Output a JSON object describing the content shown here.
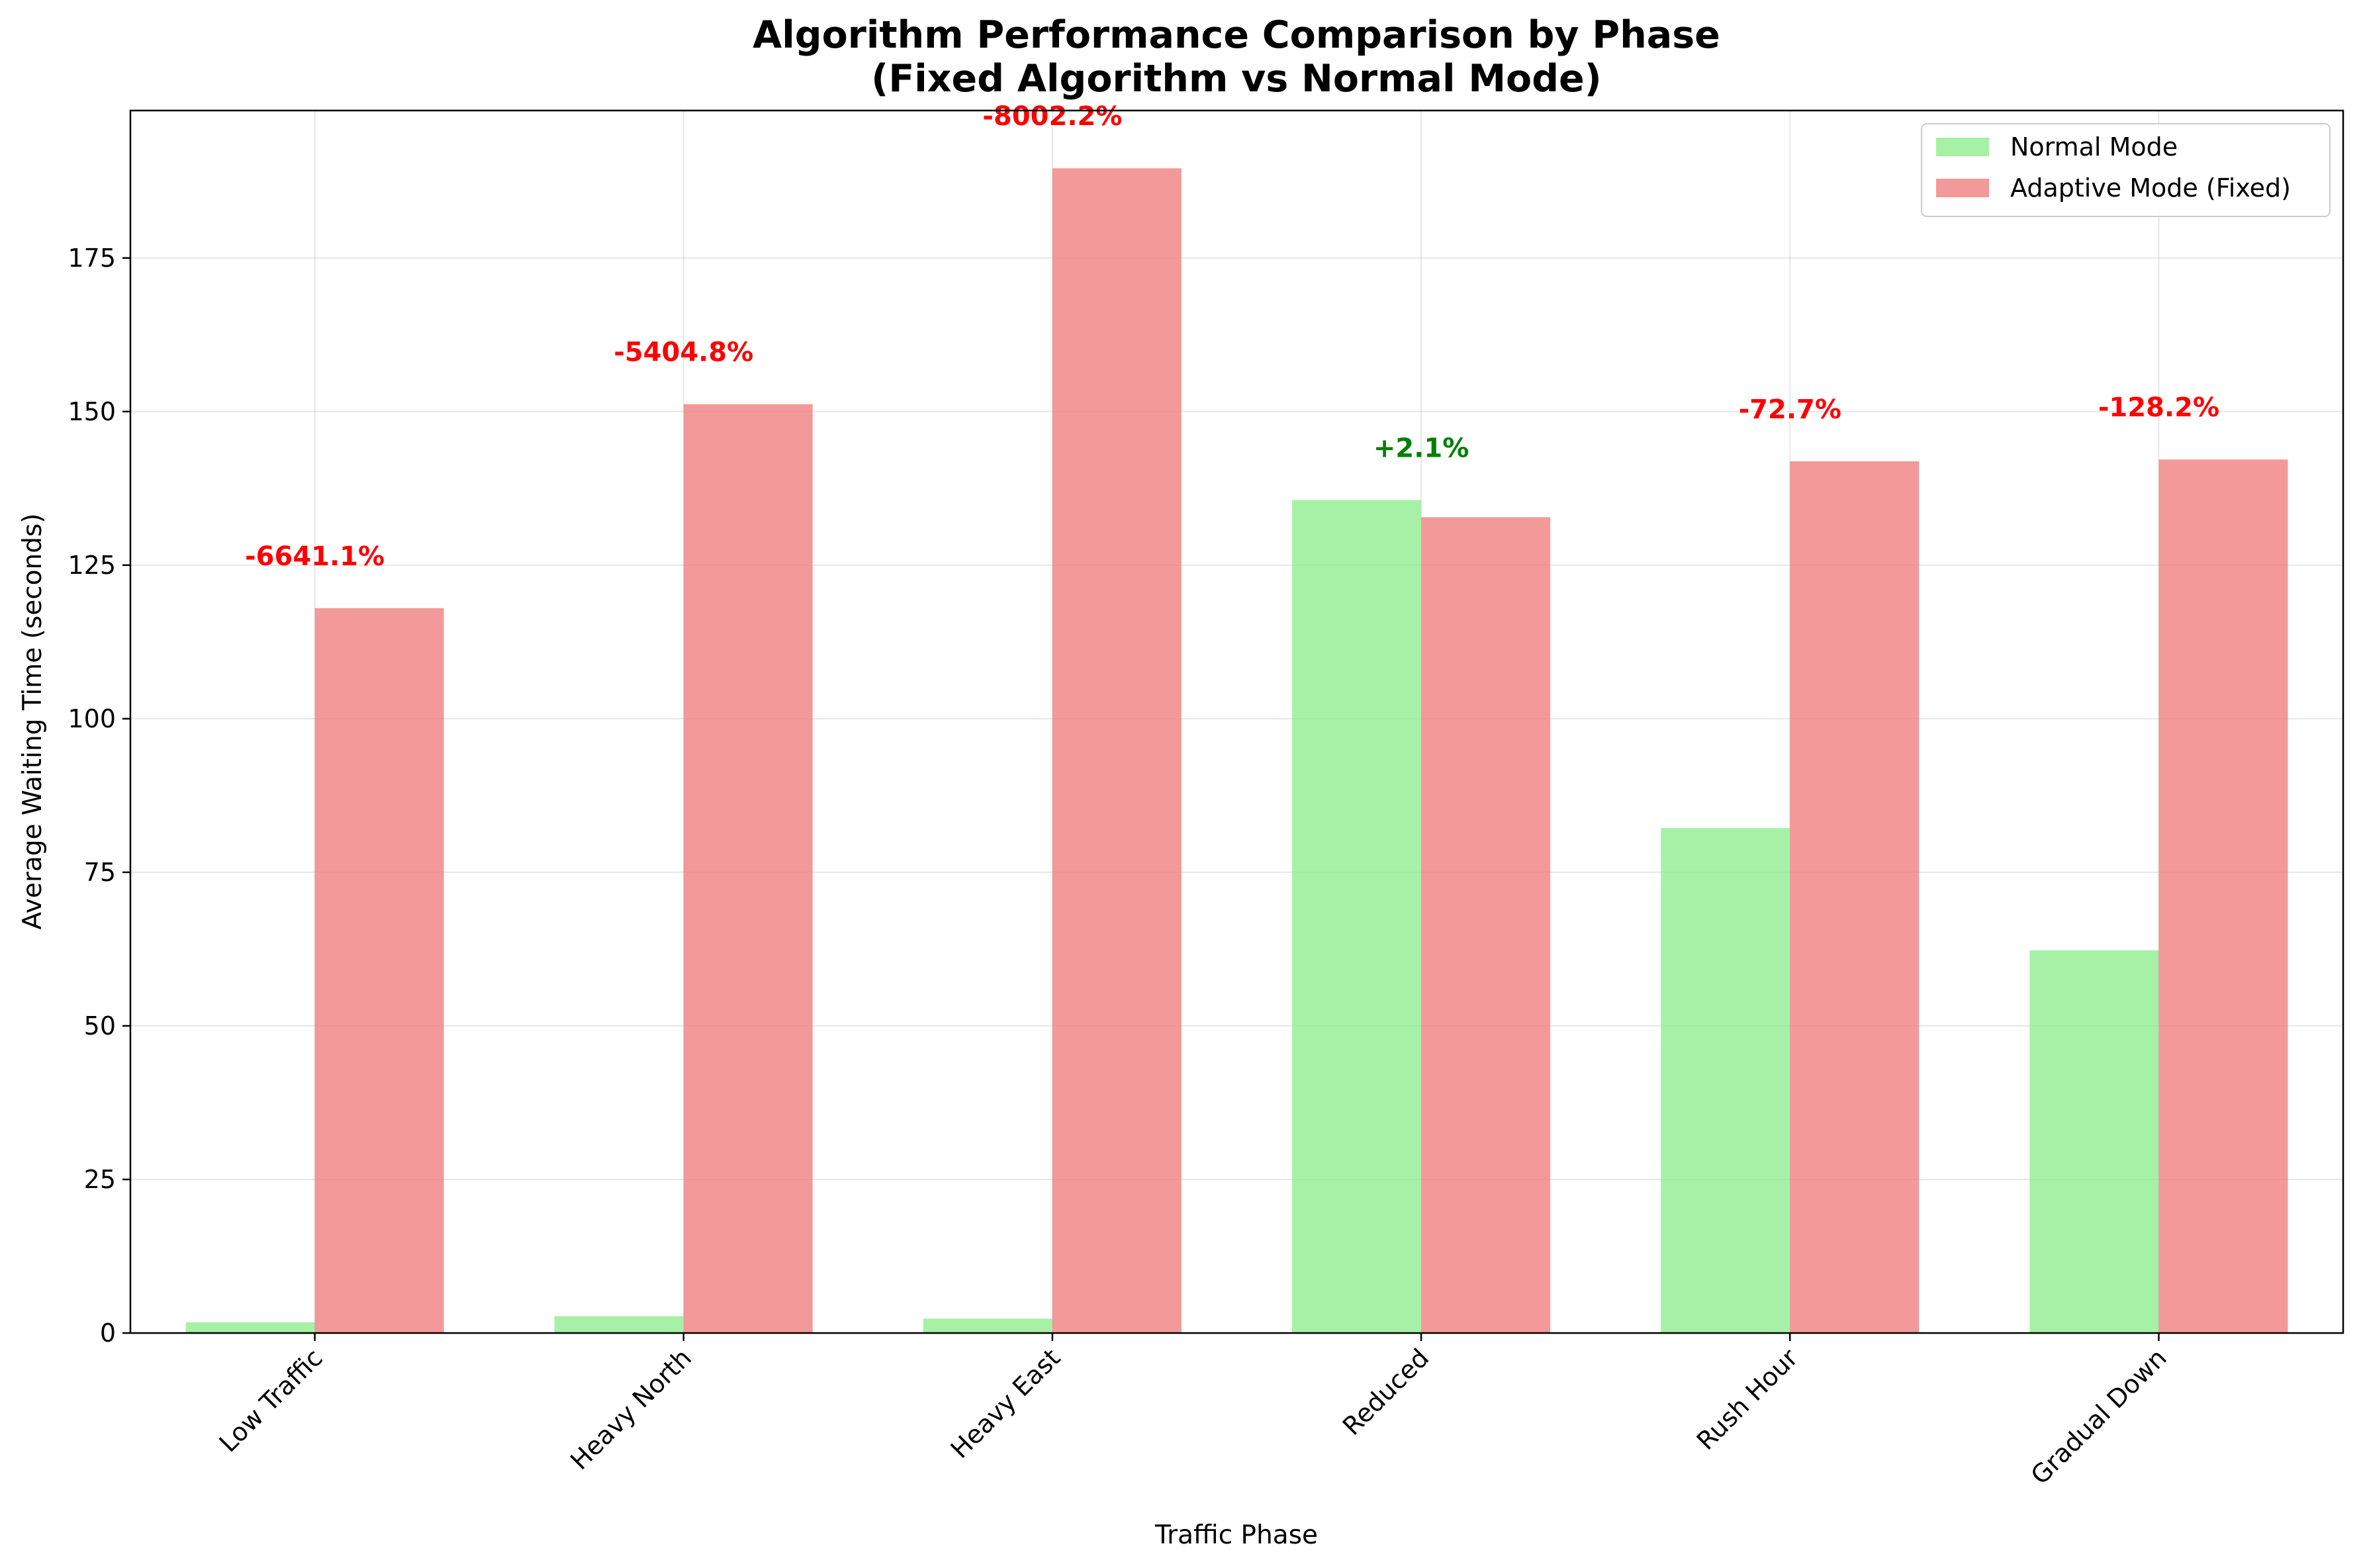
{
  "chart_data": {
    "type": "bar",
    "title": "Algorithm Performance Comparison by Phase",
    "subtitle": "(Fixed Algorithm vs Normal Mode)",
    "xlabel": "Traffic Phase",
    "ylabel": "Average Waiting Time (seconds)",
    "categories": [
      "Low Traffic",
      "Heavy North",
      "Heavy East",
      "Reduced",
      "Rush Hour",
      "Gradual Down"
    ],
    "series": [
      {
        "name": "Normal Mode",
        "color": "#90ee90",
        "values": [
          1.75,
          2.74,
          2.34,
          135.6,
          82.2,
          62.3
        ]
      },
      {
        "name": "Adaptive Mode (Fixed)",
        "color": "#f08080",
        "values": [
          118.0,
          151.2,
          189.6,
          132.8,
          141.9,
          142.2
        ]
      }
    ],
    "annotations": [
      {
        "text": "-6641.1%",
        "color": "#ff0000"
      },
      {
        "text": "-5404.8%",
        "color": "#ff0000"
      },
      {
        "text": "-8002.2%",
        "color": "#ff0000"
      },
      {
        "text": "+2.1%",
        "color": "#008000"
      },
      {
        "text": "-72.7%",
        "color": "#ff0000"
      },
      {
        "text": "-128.2%",
        "color": "#ff0000"
      }
    ],
    "yticks": [
      0,
      25,
      50,
      75,
      100,
      125,
      150,
      175
    ],
    "ylim": [
      0,
      199
    ],
    "grid": true,
    "legend_position": "top-right"
  }
}
